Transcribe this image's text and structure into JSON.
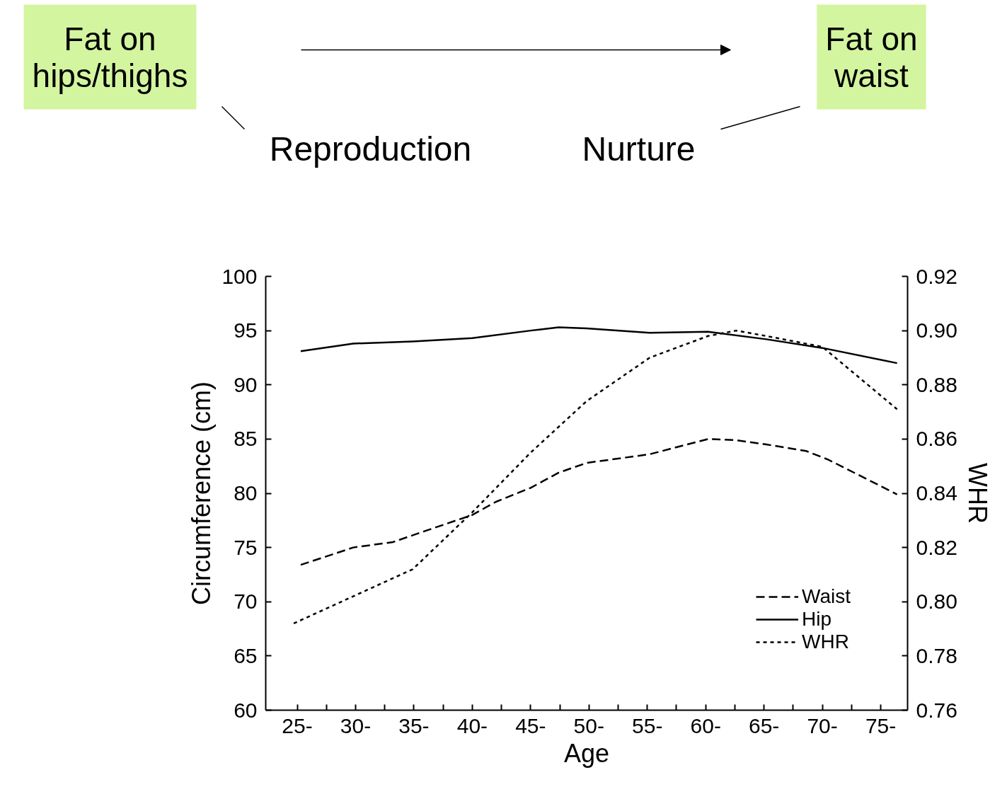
{
  "chart_data": {
    "type": "line",
    "xlabel": "Age",
    "ylabel": "Circumference (cm)",
    "y2label": "WHR",
    "xlim": [
      22.3,
      77.3
    ],
    "ylim": [
      60,
      100
    ],
    "y2lim": [
      0.76,
      0.92
    ],
    "xticks": [
      {
        "value": 25,
        "label": "25-"
      },
      {
        "value": 27.5,
        "label": null
      },
      {
        "value": 30,
        "label": "30-"
      },
      {
        "value": 32.5,
        "label": null
      },
      {
        "value": 35,
        "label": "35-"
      },
      {
        "value": 37.5,
        "label": null
      },
      {
        "value": 40,
        "label": "40-"
      },
      {
        "value": 42.5,
        "label": null
      },
      {
        "value": 45,
        "label": "45-"
      },
      {
        "value": 47.5,
        "label": null
      },
      {
        "value": 50,
        "label": "50-"
      },
      {
        "value": 52.5,
        "label": null
      },
      {
        "value": 55,
        "label": "55-"
      },
      {
        "value": 57.5,
        "label": null
      },
      {
        "value": 60,
        "label": "60-"
      },
      {
        "value": 62.5,
        "label": null
      },
      {
        "value": 65,
        "label": "65-"
      },
      {
        "value": 67.5,
        "label": null
      },
      {
        "value": 70,
        "label": "70-"
      },
      {
        "value": 72.5,
        "label": null
      },
      {
        "value": 75,
        "label": "75-"
      }
    ],
    "yticks": [
      60,
      65,
      70,
      75,
      80,
      85,
      90,
      95,
      100
    ],
    "y2ticks": [
      {
        "value": 0.76,
        "label": "0.76"
      },
      {
        "value": 0.78,
        "label": "0.78"
      },
      {
        "value": 0.8,
        "label": "0.80"
      },
      {
        "value": 0.82,
        "label": "0.82"
      },
      {
        "value": 0.84,
        "label": "0.84"
      },
      {
        "value": 0.86,
        "label": "0.86"
      },
      {
        "value": 0.88,
        "label": "0.88"
      },
      {
        "value": 0.9,
        "label": "0.90"
      },
      {
        "value": 0.92,
        "label": "0.92"
      }
    ],
    "grid": false,
    "legend": "bottom right",
    "marker": "none",
    "series": [
      {
        "name": "Waist",
        "color": "#000000",
        "line_style": "dashed",
        "x": [
          25.3,
          29.8,
          33.2,
          35.9,
          40.0,
          42.0,
          45.0,
          47.4,
          49.8,
          55.2,
          60.2,
          62.6,
          65.2,
          68.6,
          70.5,
          76.4
        ],
        "values": [
          73.4,
          75.0,
          75.5,
          76.5,
          78.0,
          79.2,
          80.5,
          81.9,
          82.8,
          83.6,
          85.0,
          84.9,
          84.5,
          83.9,
          83.1,
          79.9
        ]
      },
      {
        "name": "Hip",
        "color": "#000000",
        "line_style": "solid",
        "x": [
          25.3,
          29.8,
          34.9,
          40.0,
          45.0,
          47.4,
          49.8,
          55.2,
          60.2,
          65.2,
          70.0,
          76.4
        ],
        "values": [
          93.1,
          93.8,
          94.0,
          94.3,
          95.0,
          95.3,
          95.2,
          94.8,
          94.9,
          94.2,
          93.4,
          92.0
        ]
      },
      {
        "name": "WHR",
        "color": "#000000",
        "line_style": "dotted",
        "axis": "y2",
        "x": [
          24.7,
          29.8,
          34.9,
          40.0,
          45.0,
          49.8,
          55.2,
          60.2,
          62.6,
          65.2,
          70.0,
          76.4
        ],
        "values": [
          0.792,
          0.802,
          0.812,
          0.833,
          0.855,
          0.874,
          0.89,
          0.898,
          0.9,
          0.898,
          0.894,
          0.871
        ]
      }
    ],
    "annotations": [
      "Fat on hips/thighs",
      "Fat on waist",
      "Reproduction",
      "Nurture"
    ]
  }
}
